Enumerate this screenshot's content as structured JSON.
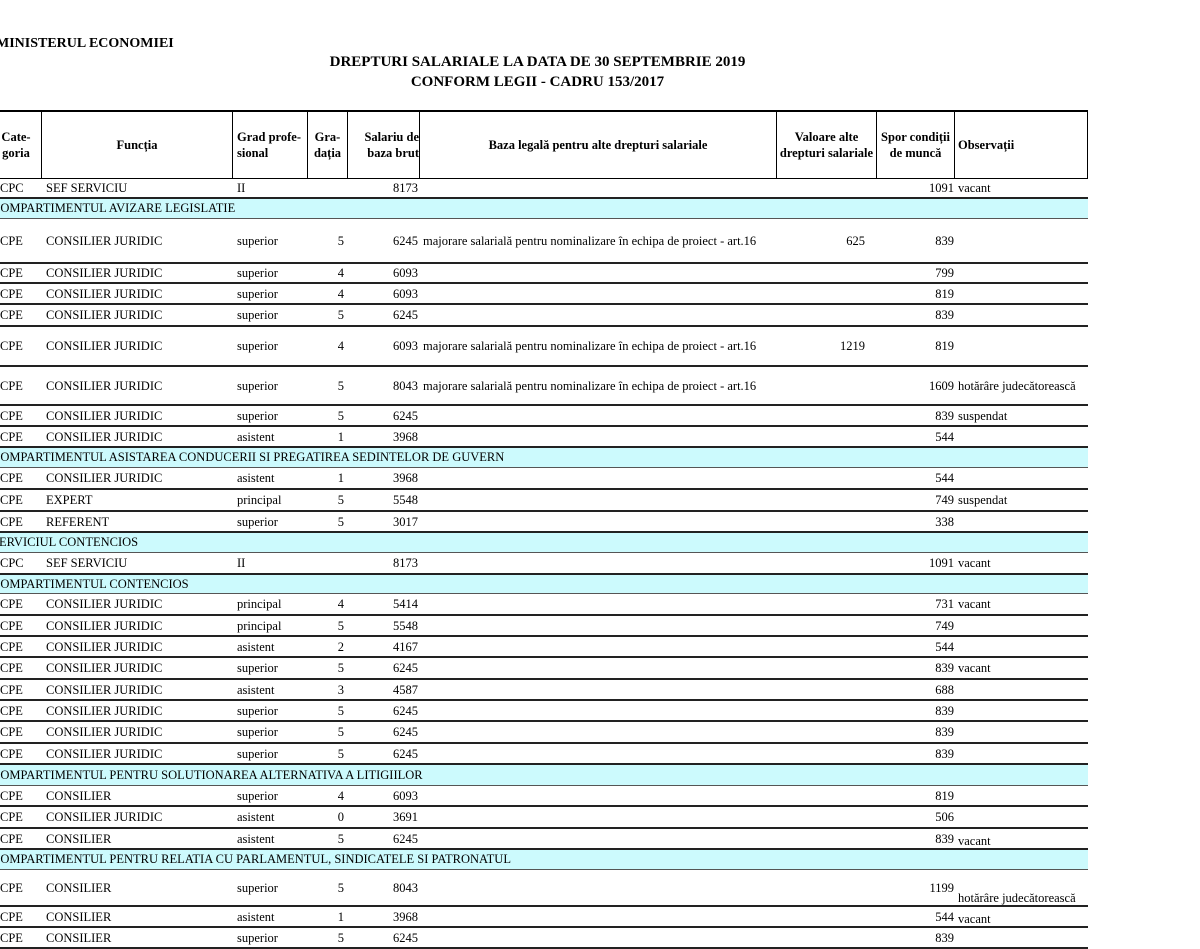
{
  "document": {
    "ministry": "MINISTERUL ECONOMIEI",
    "title_line1": "DREPTURI SALARIALE LA DATA DE 30 SEPTEMBRIE 2019",
    "title_line2": "CONFORM LEGII - CADRU 153/2017"
  },
  "table": {
    "headers": [
      "Cate-goria",
      "Funcția",
      "Grad profe-sional",
      "Gra-dația",
      "Salariu de baza brut",
      "Baza legală pentru alte drepturi salariale",
      "Valoare alte drepturi salariale",
      "Spor condiții de muncă",
      "Observații"
    ],
    "rows": [
      {
        "cat": "CPC",
        "functia": "SEF SERVICIU",
        "grad": "II",
        "gradatia": "",
        "salariu": "8173",
        "baza": "",
        "valoare": "",
        "spor": "1091",
        "obs": "vacant"
      },
      {
        "section": "COMPARTIMENTUL AVIZARE LEGISLATIE"
      },
      {
        "cat": "CPE",
        "functia": "CONSILIER JURIDIC",
        "grad": "superior",
        "gradatia": "5",
        "salariu": "6245",
        "baza": "majorare salarială pentru nominalizare în echipa de proiect - art.16",
        "valoare": "625",
        "spor": "839",
        "obs": ""
      },
      {
        "cat": "CPE",
        "functia": "CONSILIER JURIDIC",
        "grad": "superior",
        "gradatia": "4",
        "salariu": "6093",
        "baza": "",
        "valoare": "",
        "spor": "799",
        "obs": ""
      },
      {
        "cat": "CPE",
        "functia": "CONSILIER JURIDIC",
        "grad": "superior",
        "gradatia": "4",
        "salariu": "6093",
        "baza": "",
        "valoare": "",
        "spor": "819",
        "obs": ""
      },
      {
        "cat": "CPE",
        "functia": "CONSILIER JURIDIC",
        "grad": "superior",
        "gradatia": "5",
        "salariu": "6245",
        "baza": "",
        "valoare": "",
        "spor": "839",
        "obs": ""
      },
      {
        "cat": "CPE",
        "functia": "CONSILIER JURIDIC",
        "grad": "superior",
        "gradatia": "4",
        "salariu": "6093",
        "baza": "majorare salarială pentru nominalizare în echipa de proiect - art.16",
        "valoare": "1219",
        "spor": "819",
        "obs": ""
      },
      {
        "cat": "CPE",
        "functia": "CONSILIER JURIDIC",
        "grad": "superior",
        "gradatia": "5",
        "salariu": "8043",
        "baza": "majorare salarială pentru nominalizare în echipa de proiect - art.16",
        "valoare": "",
        "spor": "1609",
        "obs": "hotărâre judecătorească"
      },
      {
        "cat": "CPE",
        "functia": "CONSILIER JURIDIC",
        "grad": "superior",
        "gradatia": "5",
        "salariu": "6245",
        "baza": "",
        "valoare": "",
        "spor": "839",
        "obs": "suspendat"
      },
      {
        "cat": "CPE",
        "functia": "CONSILIER JURIDIC",
        "grad": "asistent",
        "gradatia": "1",
        "salariu": "3968",
        "baza": "",
        "valoare": "",
        "spor": "544",
        "obs": ""
      },
      {
        "section": "COMPARTIMENTUL ASISTAREA CONDUCERII SI PREGATIREA SEDINTELOR DE GUVERN"
      },
      {
        "cat": "CPE",
        "functia": "CONSILIER JURIDIC",
        "grad": "asistent",
        "gradatia": "1",
        "salariu": "3968",
        "baza": "",
        "valoare": "",
        "spor": "544",
        "obs": ""
      },
      {
        "cat": "CPE",
        "functia": "EXPERT",
        "grad": "principal",
        "gradatia": "5",
        "salariu": "5548",
        "baza": "",
        "valoare": "",
        "spor": "749",
        "obs": "suspendat"
      },
      {
        "cat": "CPE",
        "functia": "REFERENT",
        "grad": "superior",
        "gradatia": "5",
        "salariu": "3017",
        "baza": "",
        "valoare": "",
        "spor": "338",
        "obs": ""
      },
      {
        "section": "SERVICIUL CONTENCIOS"
      },
      {
        "cat": "CPC",
        "functia": "SEF SERVICIU",
        "grad": "II",
        "gradatia": "",
        "salariu": "8173",
        "baza": "",
        "valoare": "",
        "spor": "1091",
        "obs": "vacant"
      },
      {
        "section": "COMPARTIMENTUL CONTENCIOS"
      },
      {
        "cat": "CPE",
        "functia": "CONSILIER JURIDIC",
        "grad": "principal",
        "gradatia": "4",
        "salariu": "5414",
        "baza": "",
        "valoare": "",
        "spor": "731",
        "obs": "vacant"
      },
      {
        "cat": "CPE",
        "functia": "CONSILIER JURIDIC",
        "grad": "principal",
        "gradatia": "5",
        "salariu": "5548",
        "baza": "",
        "valoare": "",
        "spor": "749",
        "obs": ""
      },
      {
        "cat": "CPE",
        "functia": "CONSILIER JURIDIC",
        "grad": "asistent",
        "gradatia": "2",
        "salariu": "4167",
        "baza": "",
        "valoare": "",
        "spor": "544",
        "obs": ""
      },
      {
        "cat": "CPE",
        "functia": "CONSILIER JURIDIC",
        "grad": "superior",
        "gradatia": "5",
        "salariu": "6245",
        "baza": "",
        "valoare": "",
        "spor": "839",
        "obs": "vacant"
      },
      {
        "cat": "CPE",
        "functia": "CONSILIER JURIDIC",
        "grad": "asistent",
        "gradatia": "3",
        "salariu": "4587",
        "baza": "",
        "valoare": "",
        "spor": "688",
        "obs": ""
      },
      {
        "cat": "CPE",
        "functia": "CONSILIER JURIDIC",
        "grad": "superior",
        "gradatia": "5",
        "salariu": "6245",
        "baza": "",
        "valoare": "",
        "spor": "839",
        "obs": ""
      },
      {
        "cat": "CPE",
        "functia": "CONSILIER JURIDIC",
        "grad": "superior",
        "gradatia": "5",
        "salariu": "6245",
        "baza": "",
        "valoare": "",
        "spor": "839",
        "obs": ""
      },
      {
        "cat": "CPE",
        "functia": "CONSILIER JURIDIC",
        "grad": "superior",
        "gradatia": "5",
        "salariu": "6245",
        "baza": "",
        "valoare": "",
        "spor": "839",
        "obs": ""
      },
      {
        "section": "COMPARTIMENTUL PENTRU SOLUTIONAREA ALTERNATIVA A LITIGIILOR"
      },
      {
        "cat": "CPE",
        "functia": "CONSILIER",
        "grad": "superior",
        "gradatia": "4",
        "salariu": "6093",
        "baza": "",
        "valoare": "",
        "spor": "819",
        "obs": ""
      },
      {
        "cat": "CPE",
        "functia": "CONSILIER JURIDIC",
        "grad": "asistent",
        "gradatia": "0",
        "salariu": "3691",
        "baza": "",
        "valoare": "",
        "spor": "506",
        "obs": ""
      },
      {
        "cat": "CPE",
        "functia": "CONSILIER",
        "grad": "asistent",
        "gradatia": "5",
        "salariu": "6245",
        "baza": "",
        "valoare": "",
        "spor": "839",
        "obs": "vacant"
      },
      {
        "section": "COMPARTIMENTUL PENTRU RELATIA CU PARLAMENTUL, SINDICATELE SI PATRONATUL"
      },
      {
        "cat": "CPE",
        "functia": "CONSILIER",
        "grad": "superior",
        "gradatia": "5",
        "salariu": "8043",
        "baza": "",
        "valoare": "",
        "spor": "1199",
        "obs": "hotărâre judecătorească"
      },
      {
        "cat": "CPE",
        "functia": "CONSILIER",
        "grad": "asistent",
        "gradatia": "1",
        "salariu": "3968",
        "baza": "",
        "valoare": "",
        "spor": "544",
        "obs": "vacant"
      },
      {
        "cat": "CPE",
        "functia": "CONSILIER",
        "grad": "superior",
        "gradatia": "5",
        "salariu": "6245",
        "baza": "",
        "valoare": "",
        "spor": "839",
        "obs": ""
      }
    ]
  }
}
